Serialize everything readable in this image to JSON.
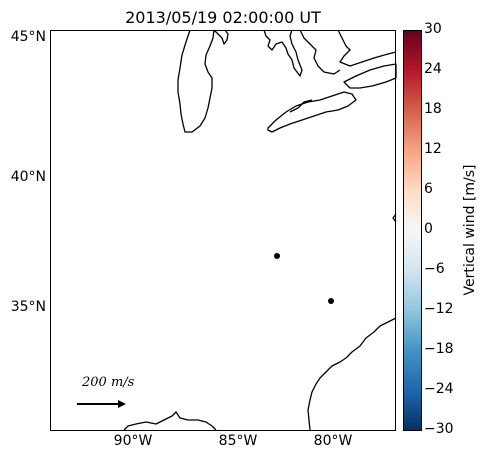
{
  "title": "2013/05/19 02:00:00 UT",
  "map": {
    "lat_labels": [
      "45°N",
      "40°N",
      "35°N"
    ],
    "lon_labels": [
      "90°W",
      "85°W",
      "80°W"
    ],
    "scale_arrow_label": "200 m/s",
    "coast_color": "#000000",
    "station_markers": 2
  },
  "colorbar": {
    "label": "Vertical wind [m/s]",
    "ticks": [
      "30",
      "24",
      "18",
      "12",
      "6",
      "0",
      "−6",
      "−12",
      "−18",
      "−24",
      "−30"
    ],
    "colormap": "RdBu_r",
    "stops": [
      "#67001f",
      "#b2182b",
      "#d6604d",
      "#f4a582",
      "#fddbc7",
      "#f7f7f7",
      "#d1e5f0",
      "#92c5de",
      "#4393c3",
      "#2166ac",
      "#053061"
    ]
  }
}
